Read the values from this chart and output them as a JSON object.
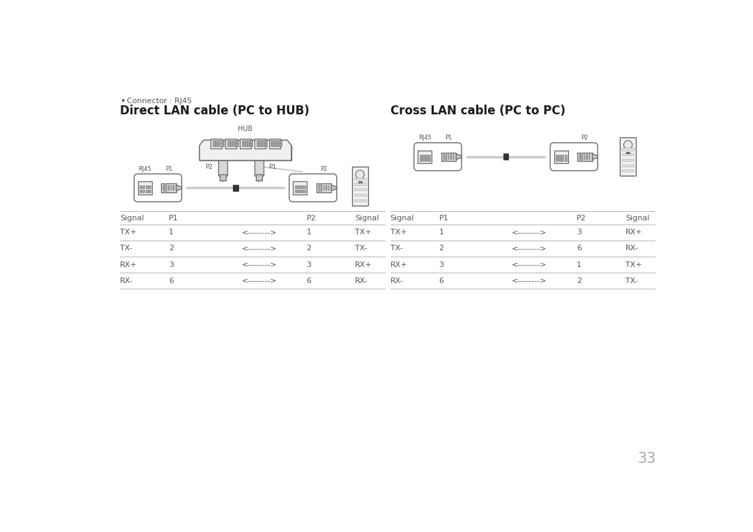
{
  "bg_color": "#ffffff",
  "page_number": "33",
  "connector_label": "Connector : RJ45",
  "left_title": "Direct LAN cable (PC to HUB)",
  "right_title": "Cross LAN cable (PC to PC)",
  "left_table_headers": [
    "Signal",
    "P1",
    "",
    "P2",
    "Signal"
  ],
  "left_table_rows": [
    [
      "TX+",
      "1",
      "<-------->",
      "1",
      "TX+"
    ],
    [
      "TX-",
      "2",
      "<-------->",
      "2",
      "TX-"
    ],
    [
      "RX+",
      "3",
      "<-------->",
      "3",
      "RX+"
    ],
    [
      "RX-",
      "6",
      "<-------->",
      "6",
      "RX-"
    ]
  ],
  "right_table_headers": [
    "Signal",
    "P1",
    "",
    "P2",
    "Signal"
  ],
  "right_table_rows": [
    [
      "TX+",
      "1",
      "<-------->",
      "3",
      "RX+"
    ],
    [
      "TX-",
      "2",
      "<-------->",
      "6",
      "RX-"
    ],
    [
      "RX+",
      "3",
      "<-------->",
      "1",
      "TX+"
    ],
    [
      "RX-",
      "6",
      "<-------->",
      "2",
      "TX-"
    ]
  ],
  "text_color": "#555555",
  "line_color": "#bbbbbb",
  "title_color": "#1a1a1a",
  "diagram_color": "#666666",
  "light_gray": "#f0f0f0",
  "mid_gray": "#cccccc",
  "dark_gray": "#444444"
}
